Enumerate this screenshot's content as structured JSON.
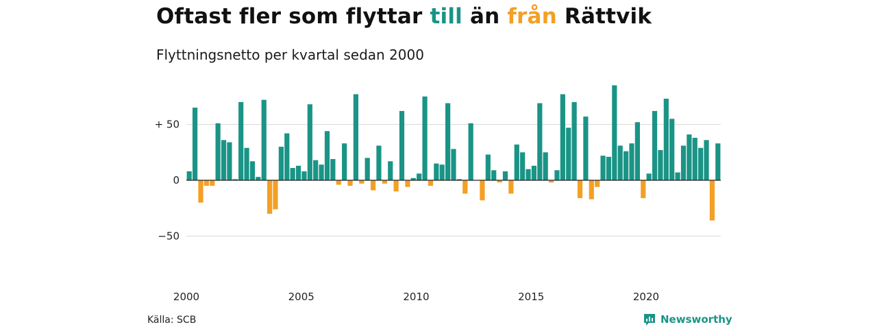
{
  "title": {
    "part1": "Oftast fler som flyttar ",
    "pos_word": "till",
    "part2": " än ",
    "neg_word": "från",
    "part3": " Rättvik"
  },
  "subtitle": "Flyttningsnetto per kvartal sedan 2000",
  "source": "Källa: SCB",
  "brand": {
    "name": "Newsworthy",
    "icon": "newsworthy-logo-icon"
  },
  "colors": {
    "positive": "#1a9486",
    "negative": "#f3a024",
    "grid": "#d9d9d9",
    "zero": "#222222"
  },
  "chart_data": {
    "type": "bar",
    "xlabel": "",
    "ylabel": "",
    "ylim": [
      -80,
      90
    ],
    "yticks": [
      {
        "value": 50,
        "label": "+ 50"
      },
      {
        "value": 0,
        "label": "0"
      },
      {
        "value": -50,
        "label": "−50"
      }
    ],
    "xticks": [
      {
        "value": 2000,
        "label": "2000"
      },
      {
        "value": 2005,
        "label": "2005"
      },
      {
        "value": 2010,
        "label": "2010"
      },
      {
        "value": 2015,
        "label": "2015"
      },
      {
        "value": 2020,
        "label": "2020"
      }
    ],
    "grid": true,
    "series": [
      {
        "start_quarter": "2000Q1",
        "values": [
          8,
          65,
          -20,
          -5,
          -5,
          51,
          36,
          34,
          1,
          70,
          29,
          17,
          3,
          72,
          -30,
          -26,
          30,
          42,
          11,
          13,
          8,
          68,
          18,
          14,
          44,
          19,
          -4,
          33,
          -5,
          77,
          -3,
          20,
          -9,
          31,
          -3,
          17,
          -10,
          62,
          -6,
          2,
          6,
          75,
          -5,
          15,
          14,
          69,
          28,
          1,
          -12,
          51,
          0,
          -18,
          23,
          9,
          -2,
          8,
          -12,
          32,
          25,
          10,
          13,
          69,
          25,
          -2,
          9,
          77,
          47,
          70,
          -16,
          57,
          -17,
          -6,
          22,
          21,
          85,
          31,
          26,
          33,
          52,
          -16,
          6,
          62,
          27,
          73,
          55,
          7,
          31,
          41,
          38,
          29,
          36,
          -36,
          33
        ]
      }
    ]
  }
}
